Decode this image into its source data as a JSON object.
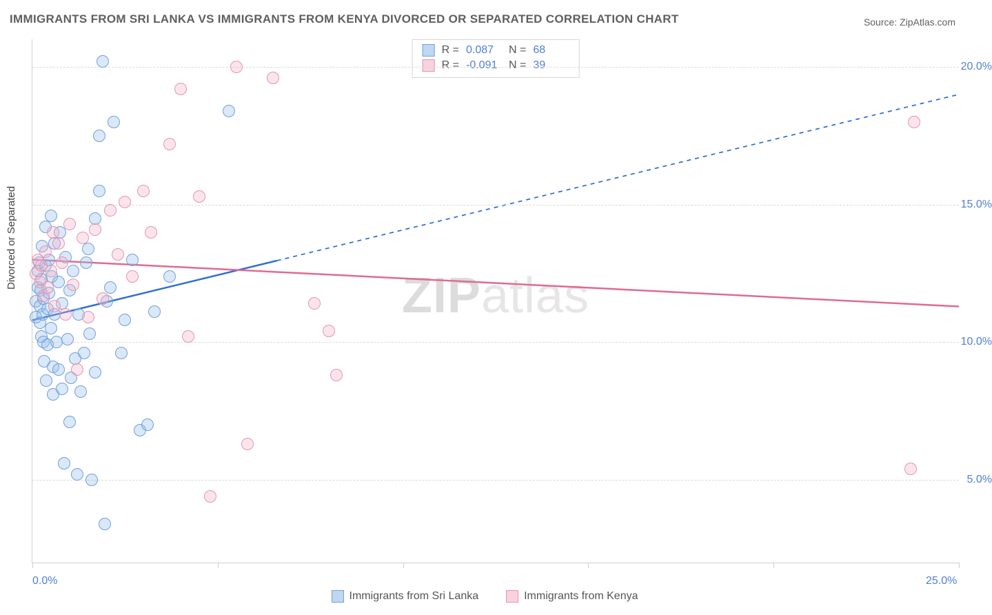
{
  "title": "IMMIGRANTS FROM SRI LANKA VS IMMIGRANTS FROM KENYA DIVORCED OR SEPARATED CORRELATION CHART",
  "source": "Source: ZipAtlas.com",
  "watermark_a": "ZIP",
  "watermark_b": "atlas",
  "ylabel": "Divorced or Separated",
  "chart": {
    "type": "scatter-correlation",
    "background_color": "#ffffff",
    "grid_color": "#d9d9d9",
    "axis_color": "#cfcfcf",
    "tick_label_color": "#4f7fd6",
    "xlim": [
      0,
      25
    ],
    "ylim": [
      2,
      21
    ],
    "x_ticks": [
      0,
      5,
      10,
      15,
      20,
      25
    ],
    "x_tick_labels": {
      "0": "0.0%",
      "25": "25.0%"
    },
    "y_gridlines": [
      5,
      10,
      15,
      20
    ],
    "y_tick_labels": {
      "5": "5.0%",
      "10": "10.0%",
      "15": "15.0%",
      "20": "20.0%"
    },
    "marker_radius": 9,
    "marker_fill_opacity": 0.35,
    "series": [
      {
        "key": "sri_lanka",
        "label": "Immigrants from Sri Lanka",
        "color_fill": "#96bde7",
        "color_stroke": "#6fa0dd",
        "R": "0.087",
        "N": "68",
        "trend": {
          "x1": 0,
          "y1": 10.8,
          "x2": 25,
          "y2": 19.0,
          "solid_until_x": 6.6,
          "stroke_width": 2.5,
          "dash": "6 6"
        },
        "points": [
          [
            0.1,
            10.9
          ],
          [
            0.1,
            11.5
          ],
          [
            0.15,
            12.0
          ],
          [
            0.15,
            12.6
          ],
          [
            0.18,
            12.9
          ],
          [
            0.2,
            11.3
          ],
          [
            0.2,
            10.7
          ],
          [
            0.22,
            11.9
          ],
          [
            0.25,
            10.2
          ],
          [
            0.25,
            12.3
          ],
          [
            0.26,
            13.5
          ],
          [
            0.28,
            11.0
          ],
          [
            0.3,
            11.6
          ],
          [
            0.3,
            10.0
          ],
          [
            0.32,
            9.3
          ],
          [
            0.35,
            12.8
          ],
          [
            0.35,
            14.2
          ],
          [
            0.38,
            8.6
          ],
          [
            0.4,
            11.2
          ],
          [
            0.4,
            9.9
          ],
          [
            0.45,
            13.0
          ],
          [
            0.45,
            11.8
          ],
          [
            0.5,
            10.5
          ],
          [
            0.5,
            14.6
          ],
          [
            0.52,
            12.4
          ],
          [
            0.55,
            8.1
          ],
          [
            0.55,
            9.1
          ],
          [
            0.6,
            11.0
          ],
          [
            0.6,
            13.6
          ],
          [
            0.65,
            10.0
          ],
          [
            0.7,
            9.0
          ],
          [
            0.7,
            12.2
          ],
          [
            0.75,
            14.0
          ],
          [
            0.8,
            8.3
          ],
          [
            0.8,
            11.4
          ],
          [
            0.85,
            5.6
          ],
          [
            0.9,
            13.1
          ],
          [
            0.95,
            10.1
          ],
          [
            1.0,
            7.1
          ],
          [
            1.0,
            11.9
          ],
          [
            1.05,
            8.7
          ],
          [
            1.1,
            12.6
          ],
          [
            1.15,
            9.4
          ],
          [
            1.2,
            5.2
          ],
          [
            1.25,
            11.0
          ],
          [
            1.3,
            8.2
          ],
          [
            1.4,
            9.6
          ],
          [
            1.45,
            12.9
          ],
          [
            1.5,
            13.4
          ],
          [
            1.55,
            10.3
          ],
          [
            1.7,
            14.5
          ],
          [
            1.7,
            8.9
          ],
          [
            1.8,
            15.5
          ],
          [
            1.8,
            17.5
          ],
          [
            1.9,
            20.2
          ],
          [
            2.0,
            11.5
          ],
          [
            2.1,
            12.0
          ],
          [
            2.2,
            18.0
          ],
          [
            2.4,
            9.6
          ],
          [
            2.5,
            10.8
          ],
          [
            2.7,
            13.0
          ],
          [
            2.9,
            6.8
          ],
          [
            3.1,
            7.0
          ],
          [
            3.3,
            11.1
          ],
          [
            3.7,
            12.4
          ],
          [
            1.95,
            3.4
          ],
          [
            1.6,
            5.0
          ],
          [
            5.3,
            18.4
          ]
        ]
      },
      {
        "key": "kenya",
        "label": "Immigrants from Kenya",
        "color_fill": "#f4b4c8",
        "color_stroke": "#e793ae",
        "R": "-0.091",
        "N": "39",
        "trend": {
          "x1": 0,
          "y1": 13.0,
          "x2": 25,
          "y2": 11.3,
          "solid_until_x": 25,
          "stroke_width": 2.5,
          "dash": ""
        },
        "points": [
          [
            0.1,
            12.5
          ],
          [
            0.15,
            13.0
          ],
          [
            0.2,
            12.2
          ],
          [
            0.25,
            12.8
          ],
          [
            0.3,
            11.7
          ],
          [
            0.35,
            13.3
          ],
          [
            0.4,
            12.0
          ],
          [
            0.5,
            12.6
          ],
          [
            0.55,
            14.0
          ],
          [
            0.6,
            11.3
          ],
          [
            0.7,
            13.6
          ],
          [
            0.8,
            12.9
          ],
          [
            0.9,
            11.0
          ],
          [
            1.0,
            14.3
          ],
          [
            1.1,
            12.1
          ],
          [
            1.2,
            9.0
          ],
          [
            1.35,
            13.8
          ],
          [
            1.5,
            10.9
          ],
          [
            1.7,
            14.1
          ],
          [
            1.9,
            11.6
          ],
          [
            2.1,
            14.8
          ],
          [
            2.3,
            13.2
          ],
          [
            2.5,
            15.1
          ],
          [
            2.7,
            12.4
          ],
          [
            3.0,
            15.5
          ],
          [
            3.2,
            14.0
          ],
          [
            3.7,
            17.2
          ],
          [
            4.0,
            19.2
          ],
          [
            4.2,
            10.2
          ],
          [
            4.5,
            15.3
          ],
          [
            4.8,
            4.4
          ],
          [
            5.5,
            20.0
          ],
          [
            5.8,
            6.3
          ],
          [
            6.5,
            19.6
          ],
          [
            7.6,
            11.4
          ],
          [
            8.2,
            8.8
          ],
          [
            8.0,
            10.4
          ],
          [
            23.8,
            18.0
          ],
          [
            23.7,
            5.4
          ]
        ]
      }
    ]
  },
  "stats_labels": {
    "R": "R =",
    "N": "N ="
  },
  "bottom_legend": [
    {
      "key": "sri_lanka",
      "label": "Immigrants from Sri Lanka"
    },
    {
      "key": "kenya",
      "label": "Immigrants from Kenya"
    }
  ]
}
